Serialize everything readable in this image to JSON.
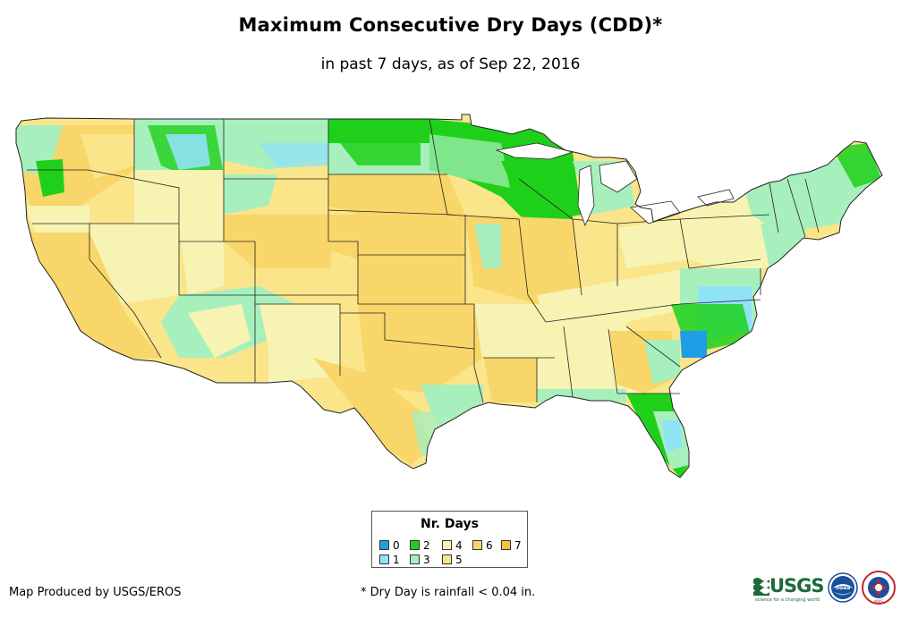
{
  "title": "Maximum Consecutive Dry Days (CDD)*",
  "subtitle": "in past 7 days, as of Sep 22, 2016",
  "legend": {
    "title": "Nr. Days",
    "items": [
      {
        "label": "0",
        "color": "#1e9ee6"
      },
      {
        "label": "1",
        "color": "#8fe3f5"
      },
      {
        "label": "2",
        "color": "#1fd01a"
      },
      {
        "label": "3",
        "color": "#a8efbe"
      },
      {
        "label": "4",
        "color": "#f7f4b3"
      },
      {
        "label": "5",
        "color": "#fbe58a"
      },
      {
        "label": "6",
        "color": "#f8d66a"
      },
      {
        "label": "7",
        "color": "#f7c43e"
      }
    ]
  },
  "credits": {
    "left": "Map Produced by USGS/EROS",
    "footnote": "* Dry Day is rainfall < 0.04 in."
  },
  "logos": {
    "usgs": "USGS",
    "usgs_tagline": "science for a changing world",
    "noaa": "noaa",
    "nws": "NWS"
  },
  "colors": {
    "border": "#222222",
    "background": "#ffffff"
  }
}
